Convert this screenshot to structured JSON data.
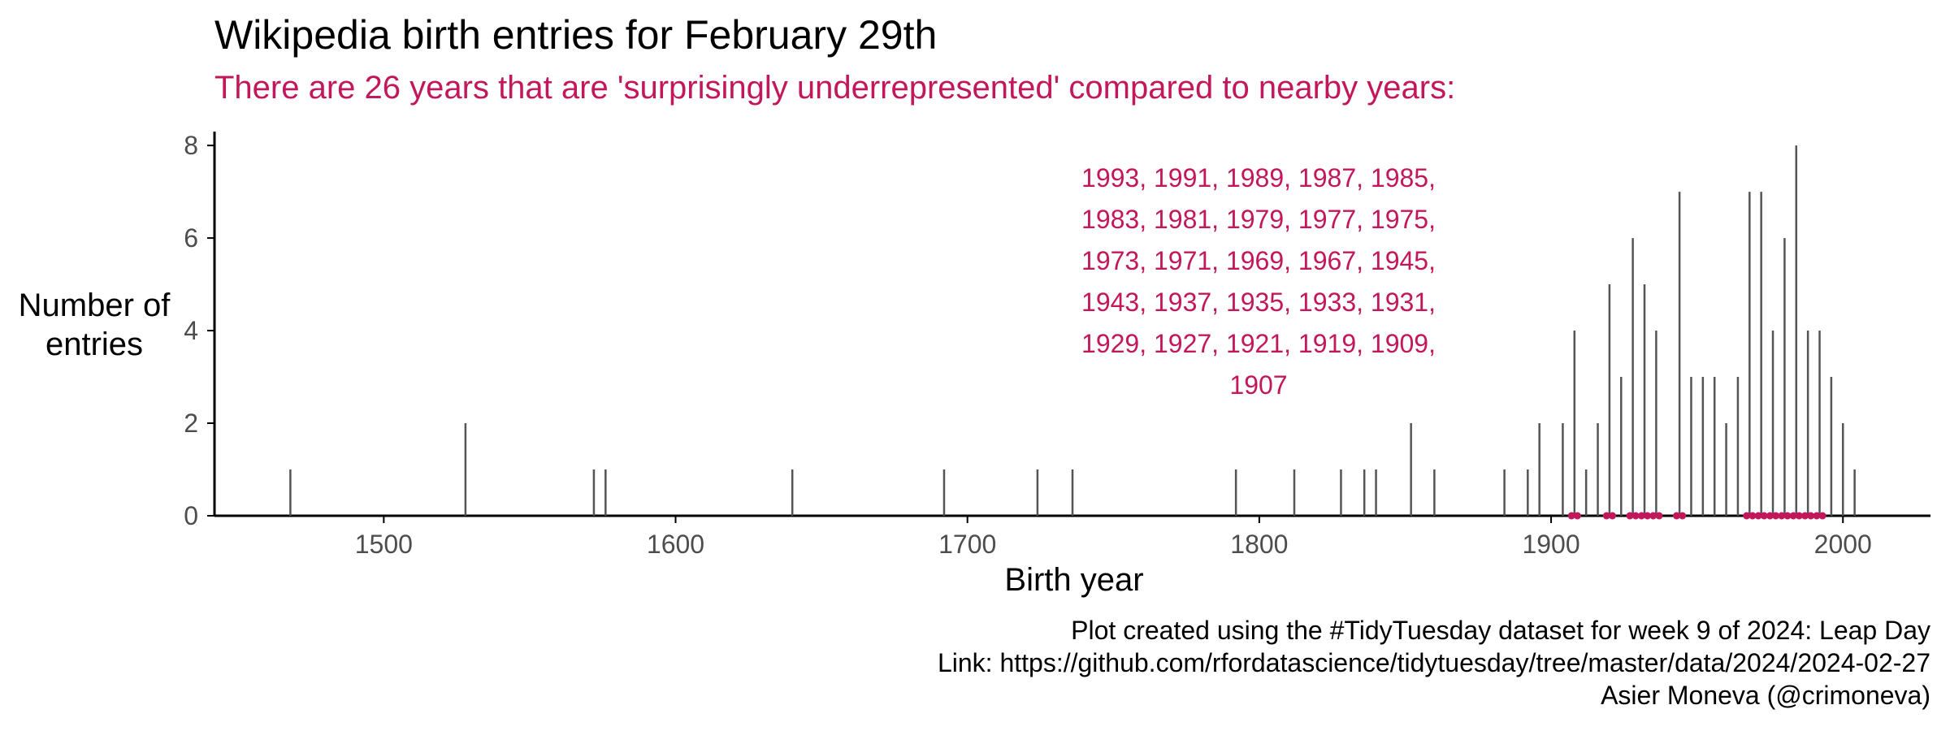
{
  "title": "Wikipedia birth entries for February 29th",
  "subtitle": "There are 26 years that are 'surprisingly underrepresented' compared to nearby years:",
  "caption": {
    "line1": "Plot created using the #TidyTuesday dataset for week 9 of 2024: Leap Day",
    "line2": "Link: https://github.com/rfordatascience/tidytuesday/tree/master/data/2024/2024-02-27",
    "line3": "Asier Moneva (@crimoneva)"
  },
  "colors": {
    "accent": "#c2185b",
    "bars": "#555555",
    "axis": "#000000",
    "tick_text": "#4d4d4d"
  },
  "chart_data": {
    "type": "bar",
    "xlabel": "Birth year",
    "ylabel": "Number of entries",
    "xlim": [
      1442,
      2030
    ],
    "ylim": [
      0,
      8.3
    ],
    "xticks": [
      1500,
      1600,
      1700,
      1800,
      1900,
      2000
    ],
    "yticks": [
      0,
      2,
      4,
      6,
      8
    ],
    "grid": false,
    "x": [
      1468,
      1528,
      1572,
      1576,
      1640,
      1692,
      1724,
      1736,
      1792,
      1812,
      1828,
      1836,
      1840,
      1852,
      1860,
      1884,
      1892,
      1896,
      1904,
      1908,
      1912,
      1916,
      1920,
      1924,
      1928,
      1932,
      1936,
      1944,
      1948,
      1952,
      1956,
      1960,
      1964,
      1968,
      1972,
      1976,
      1980,
      1984,
      1988,
      1992,
      1996,
      2000,
      2004
    ],
    "values": [
      1,
      2,
      1,
      1,
      1,
      1,
      1,
      1,
      1,
      1,
      1,
      1,
      1,
      2,
      1,
      1,
      1,
      2,
      2,
      4,
      1,
      2,
      5,
      3,
      6,
      5,
      4,
      7,
      3,
      3,
      3,
      2,
      3,
      7,
      7,
      4,
      6,
      8,
      4,
      4,
      3,
      2,
      1
    ],
    "underrepresented_years": [
      1993,
      1991,
      1989,
      1987,
      1985,
      1983,
      1981,
      1979,
      1977,
      1975,
      1973,
      1971,
      1969,
      1967,
      1945,
      1943,
      1937,
      1935,
      1933,
      1931,
      1929,
      1927,
      1921,
      1919,
      1909,
      1907
    ],
    "annotation_lines": [
      "1993, 1991, 1989, 1987, 1985,",
      "1983, 1981, 1979, 1977, 1975,",
      "1973, 1971, 1969, 1967, 1945,",
      "1943, 1937, 1935, 1933, 1931,",
      "1929, 1927, 1921, 1919, 1909,",
      "1907"
    ]
  }
}
